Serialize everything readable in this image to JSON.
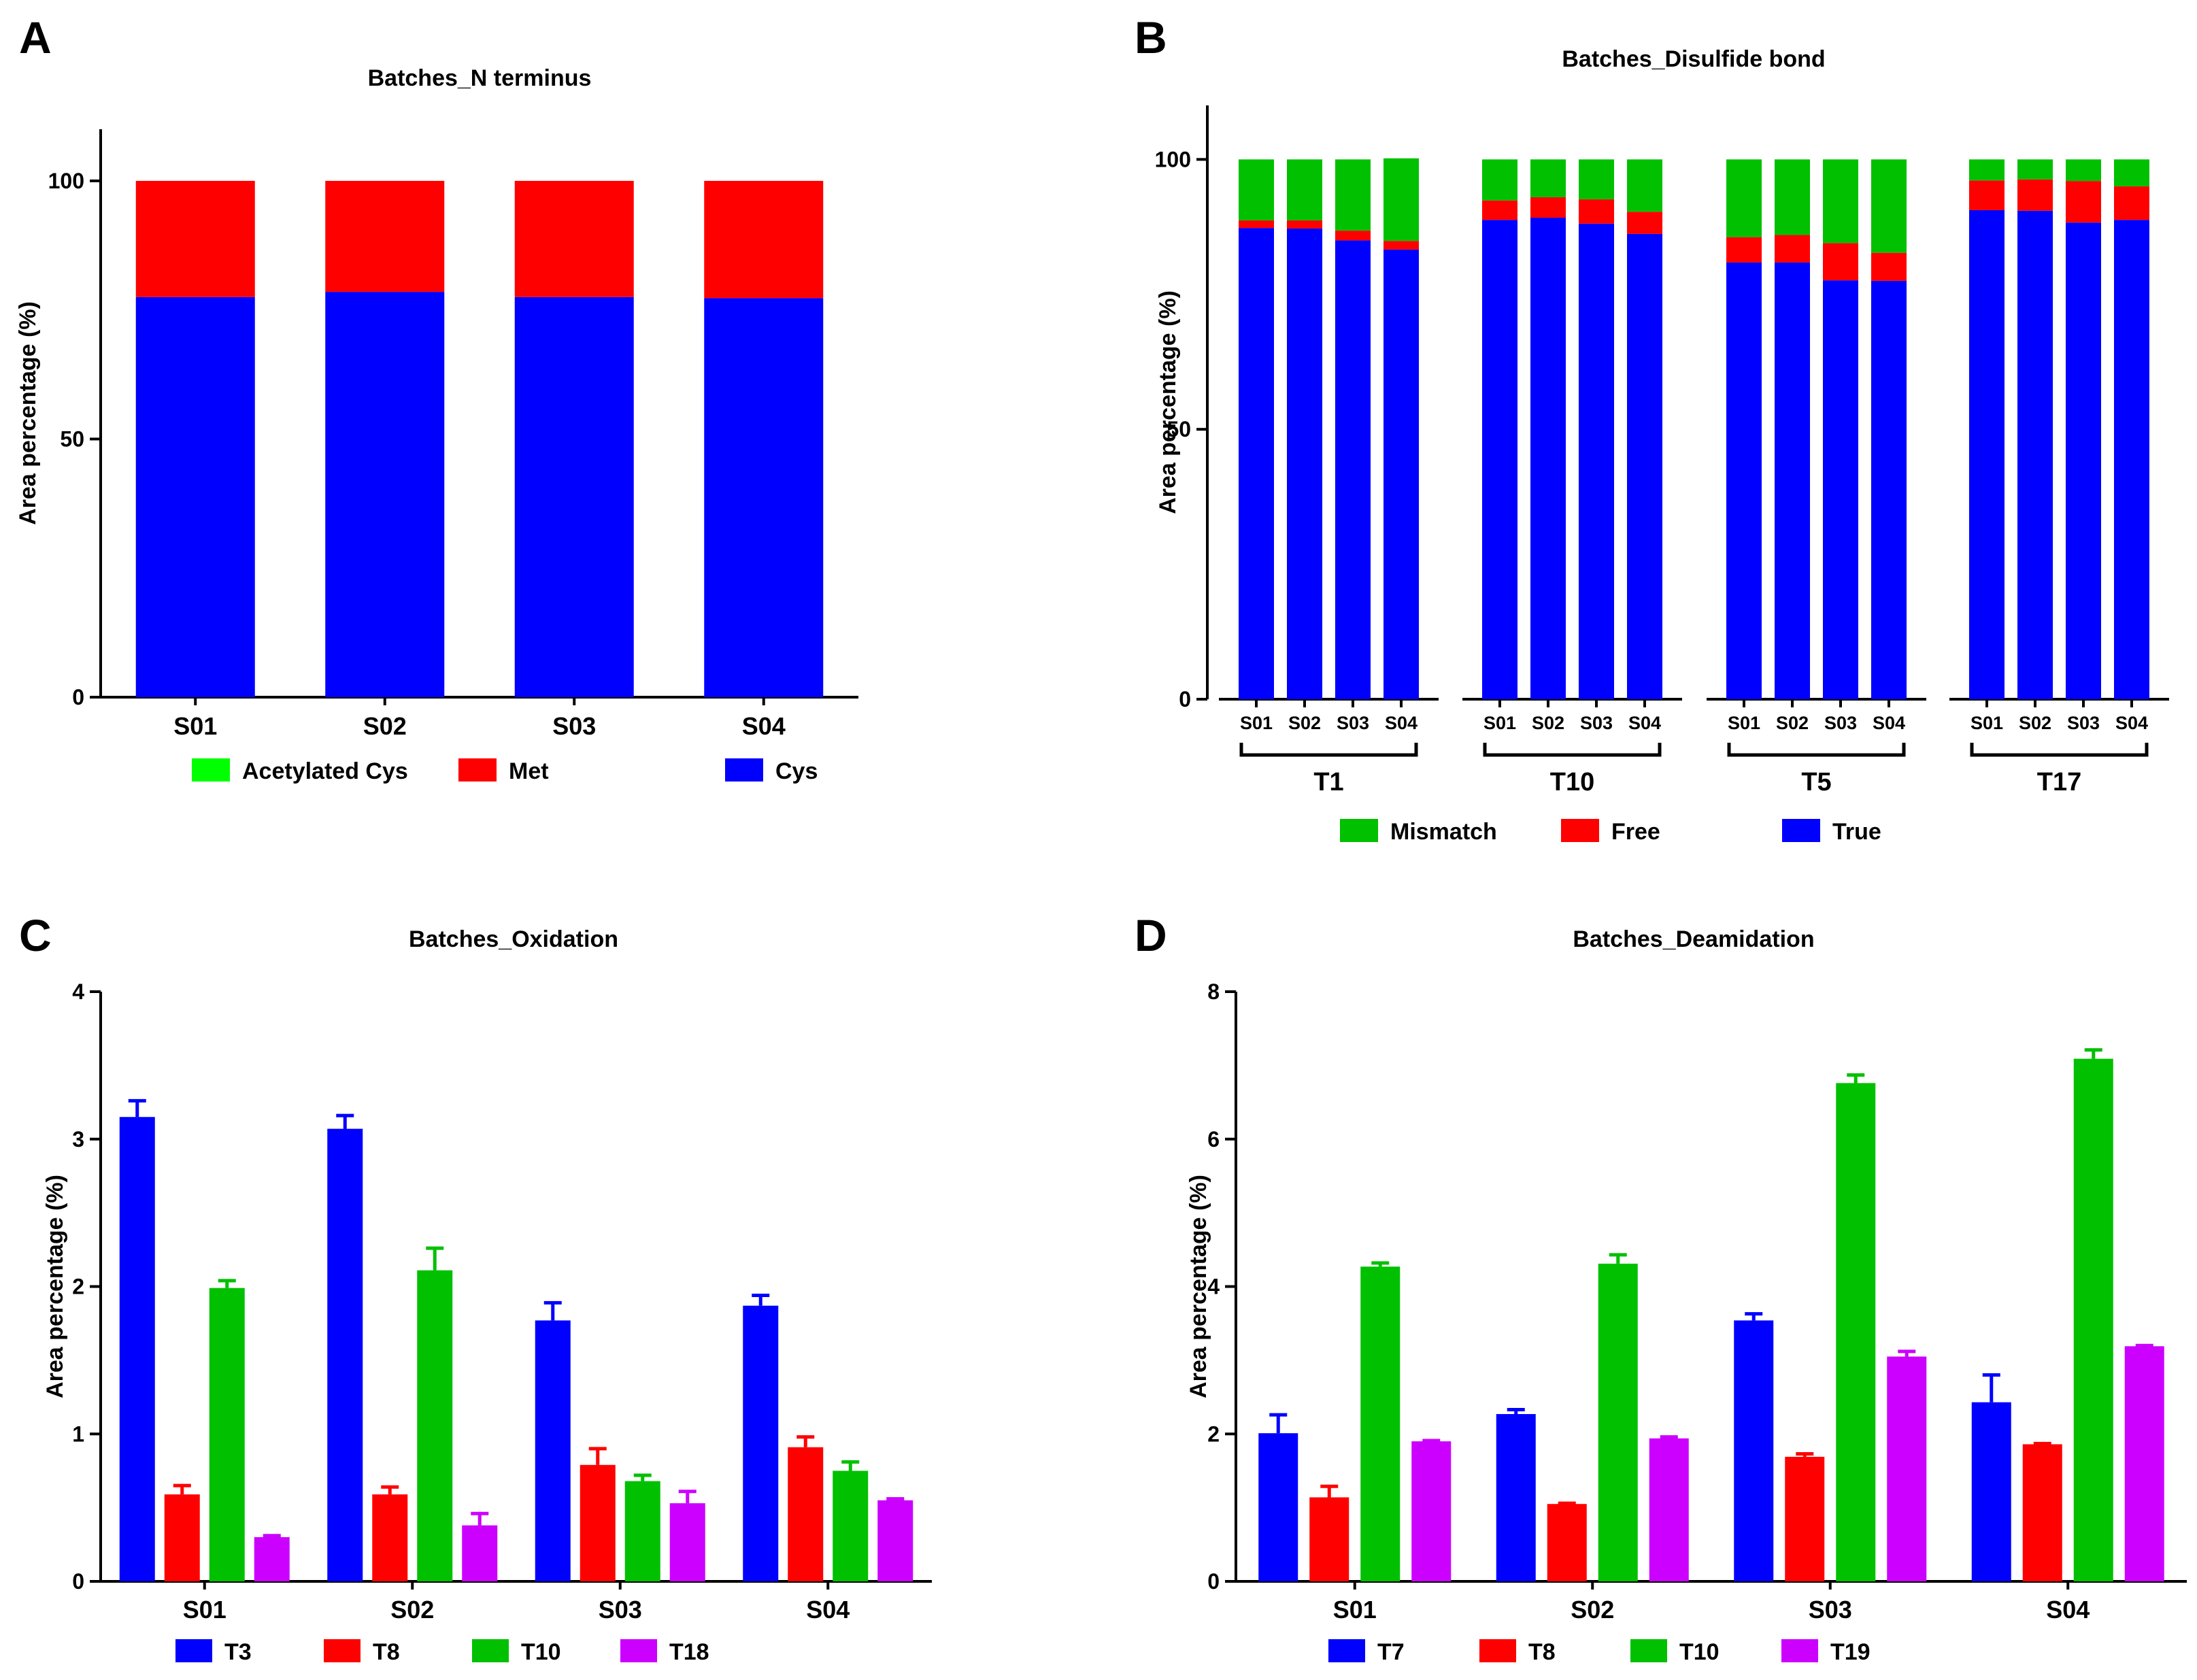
{
  "chart_data": [
    {
      "panel": "A",
      "type": "bar",
      "stacked": true,
      "title": "Batches_N terminus",
      "xlabel": "",
      "ylabel": "Area percentage (%)",
      "ylim": [
        0,
        110
      ],
      "yticks": [
        0,
        50,
        100
      ],
      "categories": [
        "S01",
        "S02",
        "S03",
        "S04"
      ],
      "series": [
        {
          "name": "Cys",
          "color": "#0000ff",
          "values": [
            77.5,
            78.5,
            77.5,
            77.3
          ]
        },
        {
          "name": "Met",
          "color": "#ff0000",
          "values": [
            22.5,
            21.5,
            22.5,
            22.7
          ]
        },
        {
          "name": "Acetylated Cys",
          "color": "#00ff00",
          "values": [
            0,
            0,
            0,
            0
          ]
        }
      ],
      "legend_order": [
        "Acetylated Cys",
        "Met",
        "Cys"
      ],
      "legend": "bottom"
    },
    {
      "panel": "B",
      "type": "bar",
      "stacked": true,
      "title": "Batches_Disulfide bond",
      "xlabel": "",
      "ylabel": "Area percentage (%)",
      "ylim": [
        0,
        110
      ],
      "yticks": [
        0,
        50,
        100
      ],
      "groups": [
        {
          "name": "T1",
          "categories": [
            "S01",
            "S02",
            "S03",
            "S04"
          ],
          "True": [
            87.3,
            87.2,
            85.0,
            83.3
          ],
          "Free": [
            1.4,
            1.5,
            1.8,
            1.6
          ],
          "Mismatch": [
            11.3,
            11.3,
            13.2,
            15.3
          ]
        },
        {
          "name": "T10",
          "categories": [
            "S01",
            "S02",
            "S03",
            "S04"
          ],
          "True": [
            88.8,
            89.2,
            88.1,
            86.2
          ],
          "Free": [
            3.6,
            3.8,
            4.5,
            4.1
          ],
          "Mismatch": [
            7.6,
            7.0,
            7.4,
            9.7
          ]
        },
        {
          "name": "T5",
          "categories": [
            "S01",
            "S02",
            "S03",
            "S04"
          ],
          "True": [
            80.9,
            80.9,
            77.6,
            77.5
          ],
          "Free": [
            4.7,
            5.1,
            6.9,
            5.2
          ],
          "Mismatch": [
            14.4,
            14.0,
            15.5,
            17.3
          ]
        },
        {
          "name": "T17",
          "categories": [
            "S01",
            "S02",
            "S03",
            "S04"
          ],
          "True": [
            90.6,
            90.5,
            88.3,
            88.8
          ],
          "Free": [
            5.5,
            5.8,
            7.7,
            6.2
          ],
          "Mismatch": [
            3.9,
            3.7,
            4.0,
            5.0
          ]
        }
      ],
      "series_colors": {
        "True": "#0000ff",
        "Free": "#ff0000",
        "Mismatch": "#00c000"
      },
      "legend_order": [
        "Mismatch",
        "Free",
        "True"
      ],
      "legend": "bottom"
    },
    {
      "panel": "C",
      "type": "bar",
      "title": "Batches_Oxidation",
      "xlabel": "",
      "ylabel": "Area percentage (%)",
      "ylim": [
        0,
        4
      ],
      "yticks": [
        0,
        1,
        2,
        3,
        4
      ],
      "categories": [
        "S01",
        "S02",
        "S03",
        "S04"
      ],
      "series": [
        {
          "name": "T3",
          "color": "#0000ff",
          "values": [
            3.15,
            3.07,
            1.77,
            1.87
          ],
          "errors": [
            0.11,
            0.09,
            0.12,
            0.07
          ]
        },
        {
          "name": "T8",
          "color": "#ff0000",
          "values": [
            0.59,
            0.59,
            0.79,
            0.91
          ],
          "errors": [
            0.06,
            0.05,
            0.11,
            0.07
          ]
        },
        {
          "name": "T10",
          "color": "#00c000",
          "values": [
            1.99,
            2.11,
            0.68,
            0.75
          ],
          "errors": [
            0.05,
            0.15,
            0.04,
            0.06
          ]
        },
        {
          "name": "T18",
          "color": "#cc00ff",
          "values": [
            0.3,
            0.38,
            0.53,
            0.55
          ],
          "errors": [
            0.01,
            0.08,
            0.08,
            0.01
          ]
        }
      ],
      "legend": "bottom"
    },
    {
      "panel": "D",
      "type": "bar",
      "title": "Batches_Deamidation",
      "xlabel": "",
      "ylabel": "Area percentage (%)",
      "ylim": [
        0,
        8
      ],
      "yticks": [
        0,
        2,
        4,
        6,
        8
      ],
      "categories": [
        "S01",
        "S02",
        "S03",
        "S04"
      ],
      "series": [
        {
          "name": "T7",
          "color": "#0000ff",
          "values": [
            2.01,
            2.27,
            3.54,
            2.43
          ],
          "errors": [
            0.25,
            0.06,
            0.09,
            0.37
          ]
        },
        {
          "name": "T8",
          "color": "#ff0000",
          "values": [
            1.14,
            1.05,
            1.69,
            1.86
          ],
          "errors": [
            0.15,
            0.01,
            0.04,
            0.01
          ]
        },
        {
          "name": "T10",
          "color": "#00c000",
          "values": [
            4.27,
            4.31,
            6.76,
            7.09
          ],
          "errors": [
            0.05,
            0.12,
            0.11,
            0.12
          ]
        },
        {
          "name": "T19",
          "color": "#cc00ff",
          "values": [
            1.9,
            1.94,
            3.05,
            3.19
          ],
          "errors": [
            0.01,
            0.02,
            0.07,
            0.01
          ]
        }
      ],
      "legend": "bottom"
    }
  ]
}
